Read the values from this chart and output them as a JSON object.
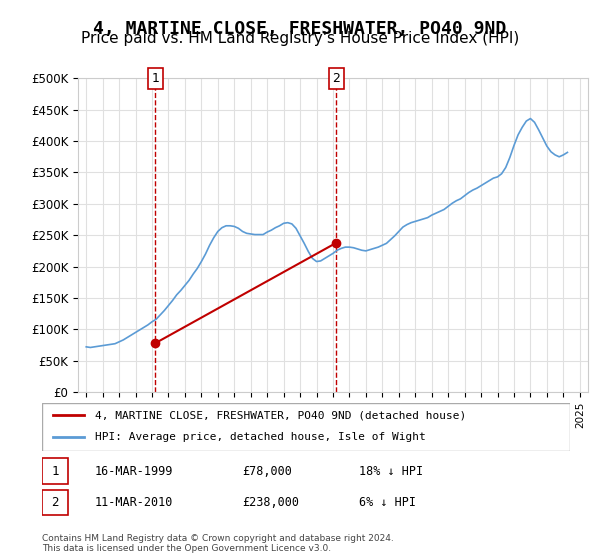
{
  "title": "4, MARTINE CLOSE, FRESHWATER, PO40 9ND",
  "subtitle": "Price paid vs. HM Land Registry's House Price Index (HPI)",
  "title_fontsize": 13,
  "subtitle_fontsize": 11,
  "ylabel_ticks": [
    "£0",
    "£50K",
    "£100K",
    "£150K",
    "£200K",
    "£250K",
    "£300K",
    "£350K",
    "£400K",
    "£450K",
    "£500K"
  ],
  "ytick_values": [
    0,
    50000,
    100000,
    150000,
    200000,
    250000,
    300000,
    350000,
    400000,
    450000,
    500000
  ],
  "ylim": [
    0,
    500000
  ],
  "xlim_start": 1994.5,
  "xlim_end": 2025.5,
  "xtick_years": [
    1995,
    1996,
    1997,
    1998,
    1999,
    2000,
    2001,
    2002,
    2003,
    2004,
    2005,
    2006,
    2007,
    2008,
    2009,
    2010,
    2011,
    2012,
    2013,
    2014,
    2015,
    2016,
    2017,
    2018,
    2019,
    2020,
    2021,
    2022,
    2023,
    2024,
    2025
  ],
  "sale1_x": 1999.21,
  "sale1_y": 78000,
  "sale1_label": "1",
  "sale1_date": "16-MAR-1999",
  "sale1_price": "£78,000",
  "sale1_hpi": "18% ↓ HPI",
  "sale2_x": 2010.21,
  "sale2_y": 238000,
  "sale2_label": "2",
  "sale2_date": "11-MAR-2010",
  "sale2_price": "£238,000",
  "sale2_hpi": "6% ↓ HPI",
  "hpi_color": "#5b9bd5",
  "price_color": "#c00000",
  "vline_color": "#c00000",
  "grid_color": "#e0e0e0",
  "legend_line1": "4, MARTINE CLOSE, FRESHWATER, PO40 9ND (detached house)",
  "legend_line2": "HPI: Average price, detached house, Isle of Wight",
  "footer": "Contains HM Land Registry data © Crown copyright and database right 2024.\nThis data is licensed under the Open Government Licence v3.0.",
  "hpi_data_x": [
    1995.0,
    1995.25,
    1995.5,
    1995.75,
    1996.0,
    1996.25,
    1996.5,
    1996.75,
    1997.0,
    1997.25,
    1997.5,
    1997.75,
    1998.0,
    1998.25,
    1998.5,
    1998.75,
    1999.0,
    1999.25,
    1999.5,
    1999.75,
    2000.0,
    2000.25,
    2000.5,
    2000.75,
    2001.0,
    2001.25,
    2001.5,
    2001.75,
    2002.0,
    2002.25,
    2002.5,
    2002.75,
    2003.0,
    2003.25,
    2003.5,
    2003.75,
    2004.0,
    2004.25,
    2004.5,
    2004.75,
    2005.0,
    2005.25,
    2005.5,
    2005.75,
    2006.0,
    2006.25,
    2006.5,
    2006.75,
    2007.0,
    2007.25,
    2007.5,
    2007.75,
    2008.0,
    2008.25,
    2008.5,
    2008.75,
    2009.0,
    2009.25,
    2009.5,
    2009.75,
    2010.0,
    2010.25,
    2010.5,
    2010.75,
    2011.0,
    2011.25,
    2011.5,
    2011.75,
    2012.0,
    2012.25,
    2012.5,
    2012.75,
    2013.0,
    2013.25,
    2013.5,
    2013.75,
    2014.0,
    2014.25,
    2014.5,
    2014.75,
    2015.0,
    2015.25,
    2015.5,
    2015.75,
    2016.0,
    2016.25,
    2016.5,
    2016.75,
    2017.0,
    2017.25,
    2017.5,
    2017.75,
    2018.0,
    2018.25,
    2018.5,
    2018.75,
    2019.0,
    2019.25,
    2019.5,
    2019.75,
    2020.0,
    2020.25,
    2020.5,
    2020.75,
    2021.0,
    2021.25,
    2021.5,
    2021.75,
    2022.0,
    2022.25,
    2022.5,
    2022.75,
    2023.0,
    2023.25,
    2023.5,
    2023.75,
    2024.0,
    2024.25
  ],
  "hpi_data_y": [
    72000,
    71000,
    72000,
    73000,
    74000,
    75000,
    76000,
    77000,
    80000,
    83000,
    87000,
    91000,
    95000,
    99000,
    103000,
    107000,
    112000,
    116000,
    123000,
    130000,
    138000,
    146000,
    155000,
    162000,
    170000,
    178000,
    188000,
    197000,
    208000,
    220000,
    234000,
    246000,
    256000,
    262000,
    265000,
    265000,
    264000,
    261000,
    256000,
    253000,
    252000,
    251000,
    251000,
    251000,
    255000,
    258000,
    262000,
    265000,
    269000,
    270000,
    268000,
    261000,
    249000,
    237000,
    224000,
    213000,
    208000,
    209000,
    213000,
    217000,
    221000,
    226000,
    229000,
    231000,
    231000,
    230000,
    228000,
    226000,
    225000,
    227000,
    229000,
    231000,
    234000,
    237000,
    243000,
    249000,
    256000,
    263000,
    267000,
    270000,
    272000,
    274000,
    276000,
    278000,
    282000,
    285000,
    288000,
    291000,
    296000,
    301000,
    305000,
    308000,
    313000,
    318000,
    322000,
    325000,
    329000,
    333000,
    337000,
    341000,
    343000,
    348000,
    358000,
    374000,
    393000,
    410000,
    422000,
    432000,
    436000,
    430000,
    418000,
    405000,
    392000,
    383000,
    378000,
    375000,
    378000,
    382000
  ],
  "price_data_x": [
    1999.21,
    2010.21
  ],
  "price_data_y": [
    78000,
    238000
  ]
}
